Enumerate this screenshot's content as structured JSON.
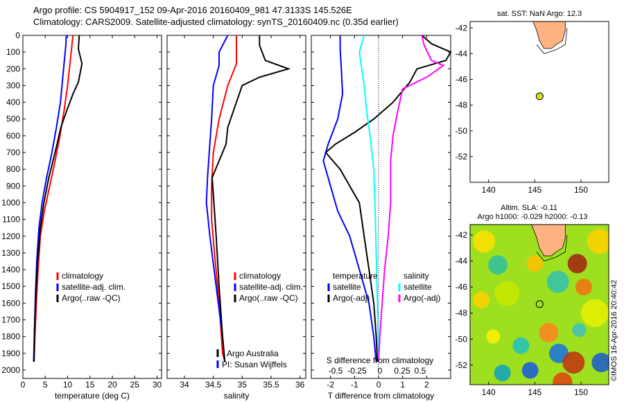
{
  "header": {
    "line1": "Argo profile: CS 5904917_152 09-Apr-2016 20160409_981 47.3133S 145.526E",
    "line2": "Climatology: CARS2009. Satellite-adjusted climatology: synTS_20160409.nc (0.35d earlier)"
  },
  "colors": {
    "climatology": "#ff0000",
    "satellite": "#0000ff",
    "argo": "#000000",
    "sat_s": "#00ffff",
    "argo_s": "#ff00ff",
    "land": "#ffb380"
  },
  "chart_data": [
    {
      "id": "temperature",
      "type": "line",
      "xlabel": "temperature (deg C)",
      "ylabel": "",
      "xlim": [
        0,
        31
      ],
      "ylim": [
        2050,
        0
      ],
      "xticks": [
        0,
        5,
        10,
        15,
        20,
        25,
        30
      ],
      "yticks": [
        0,
        100,
        200,
        300,
        400,
        500,
        600,
        700,
        800,
        900,
        1000,
        1100,
        1200,
        1300,
        1400,
        1500,
        1600,
        1700,
        1800,
        1900,
        2000
      ],
      "legend": [
        "climatology",
        "satellite-adj. clim.",
        "Argo(..raw -QC)"
      ],
      "series": [
        {
          "name": "climatology",
          "color": "#ff0000",
          "points": [
            [
              11.2,
              0
            ],
            [
              11.0,
              50
            ],
            [
              10.6,
              150
            ],
            [
              10.0,
              300
            ],
            [
              9.2,
              450
            ],
            [
              8.3,
              600
            ],
            [
              7.2,
              750
            ],
            [
              6.0,
              900
            ],
            [
              4.8,
              1050
            ],
            [
              3.9,
              1200
            ],
            [
              3.4,
              1400
            ],
            [
              3.0,
              1600
            ],
            [
              2.7,
              1800
            ],
            [
              2.5,
              1950
            ]
          ]
        },
        {
          "name": "satellite-adj. clim.",
          "color": "#0000ff",
          "points": [
            [
              9.7,
              0
            ],
            [
              9.6,
              60
            ],
            [
              9.1,
              200
            ],
            [
              8.4,
              400
            ],
            [
              7.5,
              550
            ],
            [
              6.5,
              700
            ],
            [
              5.3,
              850
            ],
            [
              4.3,
              1000
            ],
            [
              3.6,
              1150
            ],
            [
              3.1,
              1350
            ],
            [
              2.8,
              1550
            ],
            [
              2.6,
              1750
            ],
            [
              2.4,
              1950
            ]
          ]
        },
        {
          "name": "Argo(..raw -QC)",
          "color": "#000000",
          "points": [
            [
              12.6,
              0
            ],
            [
              12.4,
              80
            ],
            [
              13.2,
              170
            ],
            [
              12.4,
              280
            ],
            [
              11.2,
              350
            ],
            [
              9.8,
              450
            ],
            [
              8.5,
              550
            ],
            [
              7.2,
              700
            ],
            [
              5.8,
              850
            ],
            [
              4.7,
              1000
            ],
            [
              3.9,
              1150
            ],
            [
              3.3,
              1350
            ],
            [
              2.9,
              1550
            ],
            [
              2.6,
              1750
            ],
            [
              2.5,
              1950
            ]
          ]
        }
      ]
    },
    {
      "id": "salinity",
      "type": "line",
      "xlabel": "salinity",
      "xlim": [
        33.7,
        36.1
      ],
      "ylim": [
        2050,
        0
      ],
      "xticks": [
        34,
        34.5,
        35,
        35.5,
        36
      ],
      "legend": [
        "climatology",
        "satellite-adj. clim.",
        "Argo(..raw -QC)"
      ],
      "annotation": [
        "Argo Australia",
        "PI: Susan Wijffels"
      ],
      "series": [
        {
          "name": "climatology",
          "color": "#ff0000",
          "points": [
            [
              34.9,
              0
            ],
            [
              34.9,
              100
            ],
            [
              34.9,
              170
            ],
            [
              34.75,
              300
            ],
            [
              34.6,
              500
            ],
            [
              34.5,
              700
            ],
            [
              34.47,
              900
            ],
            [
              34.47,
              1100
            ],
            [
              34.52,
              1300
            ],
            [
              34.6,
              1600
            ],
            [
              34.66,
              1900
            ],
            [
              34.7,
              1950
            ]
          ]
        },
        {
          "name": "satellite-adj. clim.",
          "color": "#0000ff",
          "points": [
            [
              34.75,
              0
            ],
            [
              34.6,
              100
            ],
            [
              34.6,
              180
            ],
            [
              34.5,
              300
            ],
            [
              34.47,
              500
            ],
            [
              34.43,
              700
            ],
            [
              34.4,
              850
            ],
            [
              34.38,
              1000
            ],
            [
              34.44,
              1200
            ],
            [
              34.55,
              1500
            ],
            [
              34.66,
              1800
            ],
            [
              34.7,
              1950
            ]
          ]
        },
        {
          "name": "Argo(..raw -QC)",
          "color": "#000000",
          "points": [
            [
              35.3,
              0
            ],
            [
              35.3,
              60
            ],
            [
              35.4,
              150
            ],
            [
              35.8,
              200
            ],
            [
              35.3,
              250
            ],
            [
              35.0,
              300
            ],
            [
              34.85,
              450
            ],
            [
              34.75,
              550
            ],
            [
              34.72,
              650
            ],
            [
              34.6,
              750
            ],
            [
              34.48,
              850
            ],
            [
              34.5,
              950
            ],
            [
              34.55,
              1200
            ],
            [
              34.6,
              1500
            ],
            [
              34.66,
              1800
            ],
            [
              34.7,
              1950
            ]
          ]
        }
      ]
    },
    {
      "id": "difference",
      "type": "line",
      "xlabel": "T difference from climatology",
      "top_xlabel": "S difference from climatology",
      "xlim": [
        -2.8,
        3.0
      ],
      "ylim": [
        2050,
        0
      ],
      "xticks": [
        -2,
        -1,
        0,
        1,
        2
      ],
      "top_ticks": [
        "-0.5",
        "-0.25",
        "0",
        "0.25",
        "0.5"
      ],
      "legend_temperature": [
        "temperature",
        "satellite",
        "Argo(-adj)"
      ],
      "legend_salinity": [
        "salinity",
        "satellite",
        "Argo(-adj)"
      ],
      "series": [
        {
          "name": "temperature satellite",
          "color": "#0000ff",
          "points": [
            [
              -1.6,
              0
            ],
            [
              -1.6,
              80
            ],
            [
              -1.55,
              200
            ],
            [
              -1.5,
              350
            ],
            [
              -1.7,
              500
            ],
            [
              -2.1,
              650
            ],
            [
              -2.3,
              750
            ],
            [
              -2.0,
              900
            ],
            [
              -1.7,
              1050
            ],
            [
              -1.2,
              1200
            ],
            [
              -0.8,
              1400
            ],
            [
              -0.4,
              1600
            ],
            [
              -0.2,
              1800
            ],
            [
              -0.1,
              1950
            ]
          ]
        },
        {
          "name": "temperature Argo(-adj)",
          "color": "#000000",
          "points": [
            [
              1.8,
              0
            ],
            [
              2.2,
              50
            ],
            [
              3.0,
              100
            ],
            [
              2.8,
              150
            ],
            [
              1.6,
              200
            ],
            [
              1.3,
              280
            ],
            [
              0.6,
              400
            ],
            [
              -0.2,
              500
            ],
            [
              -1.0,
              580
            ],
            [
              -1.8,
              650
            ],
            [
              -2.2,
              700
            ],
            [
              -1.6,
              800
            ],
            [
              -1.2,
              900
            ],
            [
              -0.8,
              1000
            ],
            [
              -0.6,
              1200
            ],
            [
              -0.4,
              1400
            ],
            [
              -0.2,
              1600
            ],
            [
              -0.1,
              1800
            ],
            [
              -0.05,
              1950
            ]
          ]
        },
        {
          "name": "salinity satellite",
          "color": "#00ffff",
          "points": [
            [
              -0.6,
              0
            ],
            [
              -0.8,
              100
            ],
            [
              -0.7,
              200
            ],
            [
              -0.6,
              300
            ],
            [
              -0.5,
              450
            ],
            [
              -0.35,
              600
            ],
            [
              -0.2,
              800
            ],
            [
              -0.15,
              1000
            ],
            [
              -0.1,
              1300
            ],
            [
              -0.05,
              1600
            ],
            [
              0.0,
              1950
            ]
          ]
        },
        {
          "name": "salinity Argo(-adj)",
          "color": "#ff00ff",
          "points": [
            [
              1.8,
              0
            ],
            [
              1.9,
              60
            ],
            [
              2.2,
              150
            ],
            [
              2.7,
              180
            ],
            [
              2.0,
              250
            ],
            [
              1.0,
              320
            ],
            [
              0.8,
              450
            ],
            [
              0.6,
              600
            ],
            [
              0.5,
              750
            ],
            [
              0.5,
              1000
            ],
            [
              0.4,
              1200
            ],
            [
              0.25,
              1400
            ],
            [
              0.15,
              1600
            ],
            [
              0.05,
              1800
            ],
            [
              0.0,
              1950
            ]
          ]
        }
      ]
    }
  ],
  "maps": {
    "sst": {
      "title": "sat. SST: NaN  Argo: 12.3",
      "xlim": [
        138,
        153
      ],
      "ylim": [
        -54,
        -41.5
      ],
      "xticks": [
        140,
        145,
        150
      ],
      "yticks": [
        -42,
        -44,
        -46,
        -48,
        -50,
        -52
      ],
      "float_lon": 145.526,
      "float_lat": -47.3133
    },
    "sla": {
      "title_line1": "Altim. SLA: -0.11",
      "title_line2": "Argo h1000: -0.029  h2000: -0.13",
      "xlim": [
        138,
        153
      ],
      "ylim": [
        -53.5,
        -41.2
      ],
      "xticks": [
        140,
        145,
        150
      ],
      "yticks": [
        -42,
        -44,
        -46,
        -48,
        -50,
        -52
      ],
      "float_lon": 145.526,
      "float_lat": -47.3133,
      "credit": "©IMOS 16-Apr-2016 20:40:42"
    }
  }
}
